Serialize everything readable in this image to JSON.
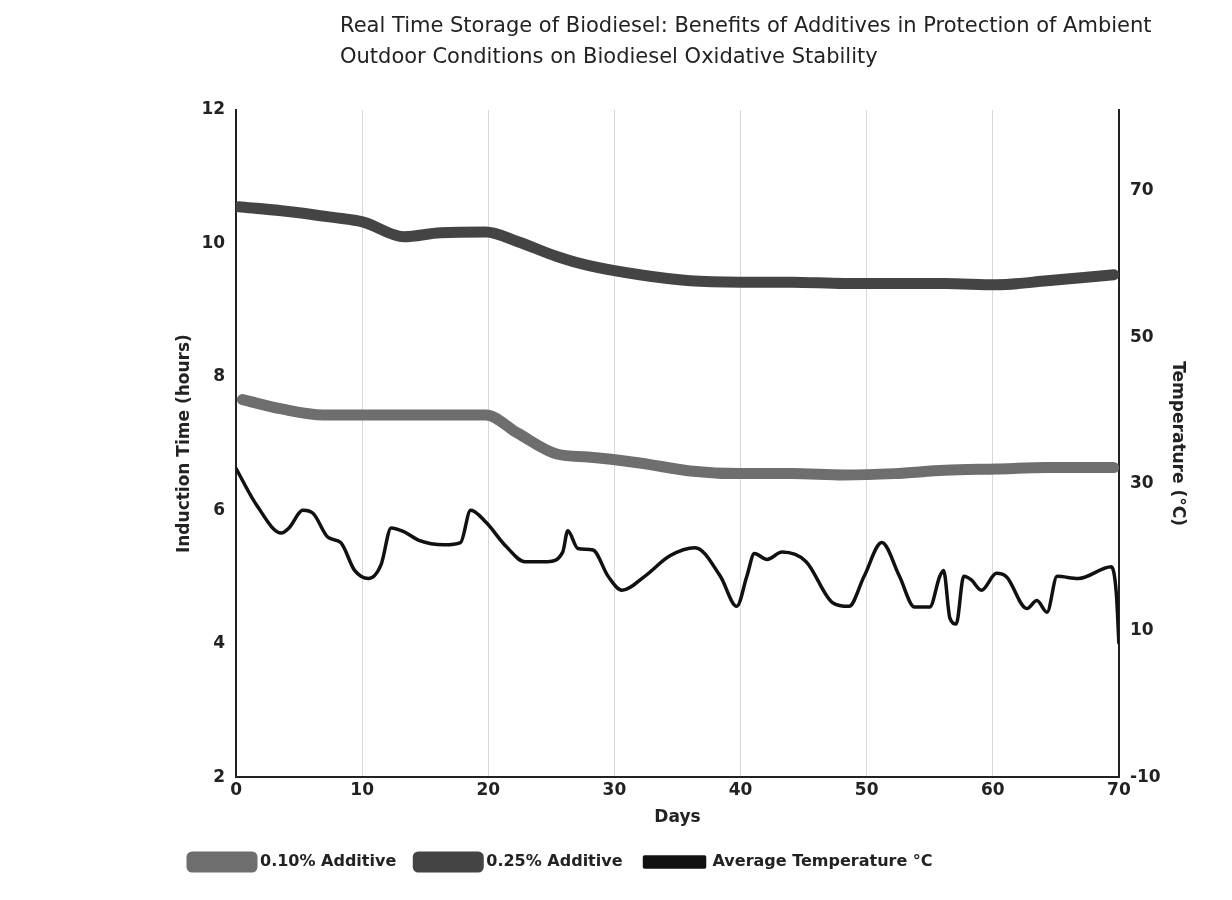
{
  "chart_data": {
    "type": "line",
    "title": "Real Time Storage of Biodiesel: Benefits of Additives in Protection of Ambient Outdoor Conditions on Biodiesel Oxidative Stability",
    "xlabel": "Days",
    "ylabel": "Induction Time (hours)",
    "y2label": "Temperature (°C)",
    "xlim": [
      0,
      70
    ],
    "xticks": [
      0,
      10,
      20,
      30,
      40,
      50,
      60,
      70
    ],
    "ylim": [
      2,
      12
    ],
    "yticks": [
      2,
      4,
      6,
      8,
      10,
      12
    ],
    "y2lim": [
      -10,
      81
    ],
    "y2ticks": [
      -10,
      10,
      30,
      50,
      70
    ],
    "grid": "x",
    "legend": "bottom left",
    "marker": "none",
    "line_style": "solid",
    "series": [
      {
        "name": "0.10% Additive",
        "color": "#6e6e6e",
        "x": [
          0.5,
          3.6,
          6.9,
          10.1,
          19.8,
          22.3,
          25.5,
          27.9,
          32,
          36,
          40,
          44.1,
          48.2,
          52.2,
          56.2,
          60.3,
          64.3,
          69.6
        ],
        "values": [
          7.66,
          7.52,
          7.43,
          7.43,
          7.43,
          7.16,
          6.84,
          6.8,
          6.71,
          6.59,
          6.55,
          6.55,
          6.53,
          6.55,
          6.6,
          6.62,
          6.64,
          6.64
        ]
      },
      {
        "name": "0.25% Additive",
        "color": "#444444",
        "x": [
          0.2,
          3.6,
          7.7,
          10.1,
          13.3,
          16.2,
          19.8,
          22.3,
          25.5,
          27.9,
          32,
          36,
          40,
          44.1,
          48.2,
          52.2,
          56.2,
          60.3,
          64.3,
          69.6
        ],
        "values": [
          10.55,
          10.49,
          10.39,
          10.32,
          10.1,
          10.16,
          10.17,
          10.03,
          9.8,
          9.67,
          9.53,
          9.44,
          9.42,
          9.42,
          9.4,
          9.4,
          9.4,
          9.38,
          9.44,
          9.53
        ]
      },
      {
        "name": "Average Temperature °C",
        "color": "#111111",
        "axis": "y2",
        "x": [
          0,
          1.6,
          3.6,
          4.2,
          5.3,
          6.1,
          7.3,
          8.3,
          9.4,
          10.5,
          11.5,
          12.3,
          13.3,
          14.5,
          16.5,
          17.8,
          18.6,
          19.8,
          21.4,
          22.9,
          24.7,
          25.9,
          26.3,
          27.1,
          28.3,
          29.5,
          30.6,
          32.4,
          34.4,
          36.4,
          38.4,
          39.7,
          40.5,
          41.1,
          42.1,
          43.3,
          45.2,
          47.3,
          48.6,
          49.8,
          51.2,
          52.6,
          53.8,
          55,
          55.8,
          56.1,
          56.6,
          57.1,
          57.7,
          58.3,
          59.1,
          60.3,
          61.1,
          62.7,
          63.5,
          64.3,
          65.1,
          66.8,
          69.4,
          69.8,
          70
        ],
        "values": [
          32.1,
          27.2,
          23.3,
          24,
          26.4,
          26,
          22.7,
          22,
          18.2,
          17.1,
          19,
          24,
          23.5,
          22.3,
          21.7,
          22,
          26.4,
          24.8,
          21.5,
          19.4,
          19.4,
          20.7,
          23.6,
          21.2,
          21,
          17.4,
          15.5,
          17.4,
          20.2,
          21.3,
          17.4,
          13.3,
          17.4,
          20.5,
          19.7,
          20.7,
          19.4,
          13.8,
          13.3,
          17.4,
          22,
          17.4,
          13.2,
          13.2,
          17.4,
          18.2,
          11.7,
          10.9,
          17.4,
          16.9,
          15.5,
          17.8,
          17.3,
          13,
          14.1,
          12.5,
          17.4,
          17.1,
          18.7,
          15,
          8.3
        ]
      }
    ]
  }
}
